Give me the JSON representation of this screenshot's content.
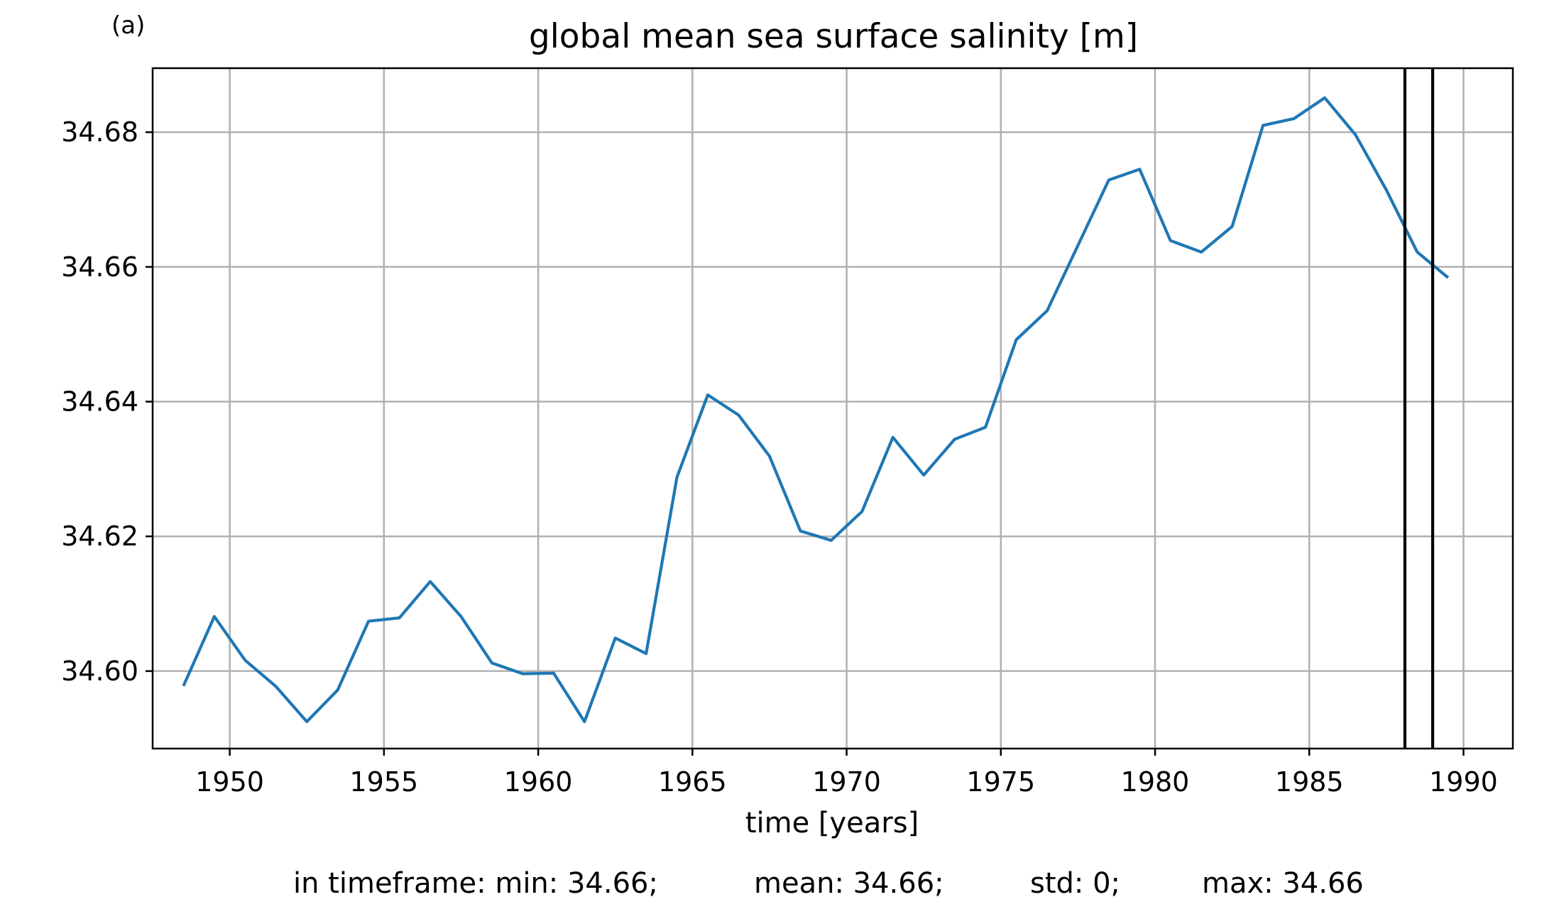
{
  "panel_label": "(a)",
  "footer": {
    "stats": [
      "in timeframe: min: 34.66;",
      "mean: 34.66;",
      "std: 0;",
      "max: 34.66"
    ]
  },
  "colors": {
    "series": "#1f77b4",
    "marker_lines": "#000000",
    "grid": "#b0b0b0"
  },
  "chart_data": {
    "type": "line",
    "title": "global mean sea surface salinity [m]",
    "xlabel": "time [years]",
    "ylabel": "",
    "xlim": [
      1947.5,
      1991.6
    ],
    "ylim": [
      34.5885,
      34.6895
    ],
    "grid": true,
    "x_ticks": [
      1950,
      1955,
      1960,
      1965,
      1970,
      1975,
      1980,
      1985,
      1990
    ],
    "x_tick_labels": [
      "1950",
      "1955",
      "1960",
      "1965",
      "1970",
      "1975",
      "1980",
      "1985",
      "1990"
    ],
    "y_ticks": [
      34.6,
      34.62,
      34.64,
      34.66,
      34.68
    ],
    "y_tick_labels": [
      "34.60",
      "34.62",
      "34.64",
      "34.66",
      "34.68"
    ],
    "series": [
      {
        "x": [
          1948.5,
          1949.5,
          1950.5,
          1951.5,
          1952.5,
          1953.5,
          1954.5,
          1955.5,
          1956.5,
          1957.5,
          1958.5,
          1959.5,
          1960.5,
          1961.5,
          1962.5,
          1963.5,
          1964.5,
          1965.5,
          1966.5,
          1967.5,
          1968.5,
          1969.5,
          1970.5,
          1971.5,
          1972.5,
          1973.5,
          1974.5,
          1975.5,
          1976.5,
          1977.5,
          1978.5,
          1979.5,
          1980.5,
          1981.5,
          1982.5,
          1983.5,
          1984.5,
          1985.5,
          1986.5,
          1987.5,
          1988.5,
          1989.5
        ],
        "values": [
          34.5978,
          34.6081,
          34.6016,
          34.5977,
          34.5925,
          34.5972,
          34.6074,
          34.6079,
          34.6133,
          34.6081,
          34.6012,
          34.5996,
          34.5997,
          34.5925,
          34.6049,
          34.6026,
          34.6288,
          34.641,
          34.638,
          34.6319,
          34.6208,
          34.6194,
          34.6237,
          34.6347,
          34.6291,
          34.6344,
          34.6362,
          34.6492,
          34.6535,
          34.6632,
          34.6729,
          34.6745,
          34.6639,
          34.6622,
          34.666,
          34.681,
          34.682,
          34.6851,
          34.6796,
          34.6714,
          34.6622,
          34.6584
        ]
      }
    ],
    "vertical_lines": [
      1988.1,
      1989.0
    ]
  }
}
